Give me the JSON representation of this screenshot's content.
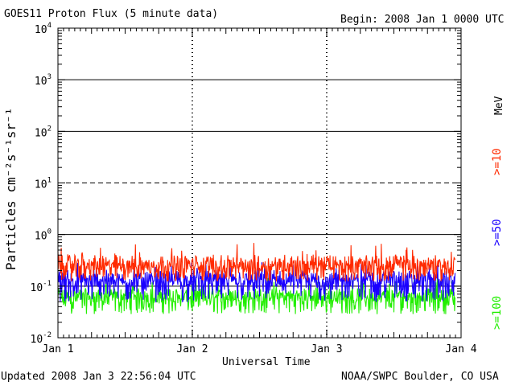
{
  "header": {
    "title": "GOES11 Proton Flux (5 minute data)",
    "begin": "Begin: 2008 Jan 1 0000 UTC"
  },
  "footer": {
    "updated": "Updated 2008 Jan  3 22:56:04 UTC",
    "credit": "NOAA/SWPC Boulder, CO USA"
  },
  "legend": {
    "unit": "MeV",
    "items": [
      {
        "label": ">=10",
        "color": "#ff2a00"
      },
      {
        "label": ">=50",
        "color": "#1a00ff"
      },
      {
        "label": ">=100",
        "color": "#22ee00"
      }
    ]
  },
  "chart_data": {
    "type": "line",
    "title": "GOES11 Proton Flux (5 minute data)",
    "xlabel": "Universal Time",
    "ylabel": "Particles cm⁻²s⁻¹sr⁻¹",
    "yscale": "log",
    "ylim": [
      0.01,
      10000
    ],
    "y_ticks": [
      {
        "value": 0.01,
        "base": "10",
        "exp": "-2"
      },
      {
        "value": 0.1,
        "base": "10",
        "exp": "-1"
      },
      {
        "value": 1,
        "base": "10",
        "exp": "0"
      },
      {
        "value": 10,
        "base": "10",
        "exp": "1"
      },
      {
        "value": 100,
        "base": "10",
        "exp": "2"
      },
      {
        "value": 1000,
        "base": "10",
        "exp": "3"
      },
      {
        "value": 10000,
        "base": "10",
        "exp": "4"
      }
    ],
    "x_ticks": [
      "Jan 1",
      "Jan 2",
      "Jan 3",
      "Jan 4"
    ],
    "x_range_days": [
      0,
      3
    ],
    "data_end_day": 2.955,
    "thresholds": [
      {
        "value": 1000,
        "style": "solid"
      },
      {
        "value": 100,
        "style": "solid"
      },
      {
        "value": 10,
        "style": "dashed"
      },
      {
        "value": 1,
        "style": "solid"
      },
      {
        "value": 0.1,
        "style": "solid"
      }
    ],
    "series": [
      {
        "name": ">=10 MeV",
        "color": "#ff2a00",
        "typical": 0.2,
        "range": [
          0.11,
          0.7
        ]
      },
      {
        "name": ">=50 MeV",
        "color": "#1a00ff",
        "typical": 0.1,
        "range": [
          0.04,
          0.3
        ]
      },
      {
        "name": ">=100 MeV",
        "color": "#22ee00",
        "typical": 0.05,
        "range": [
          0.025,
          0.15
        ]
      }
    ]
  }
}
